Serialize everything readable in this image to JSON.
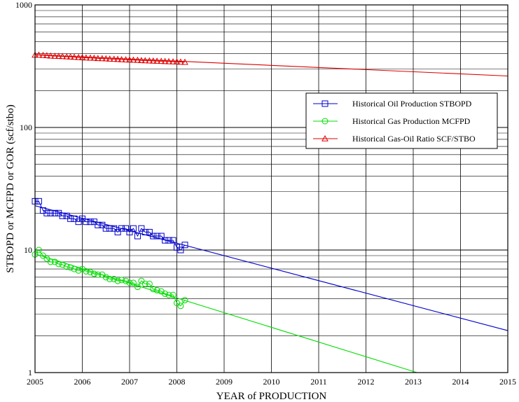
{
  "chart_data": {
    "type": "line",
    "xlabel": "YEAR  of  PRODUCTION",
    "ylabel": "STBOPD  or  MCFPD  or  GOR (scf/stbo)",
    "xlim": [
      2005,
      2015
    ],
    "ylim": [
      1,
      1000
    ],
    "yscale": "log",
    "grid": true,
    "x_ticks": [
      "2005",
      "2006",
      "2007",
      "2008",
      "2009",
      "2010",
      "2011",
      "2012",
      "2013",
      "2014",
      "2015"
    ],
    "y_ticks": [
      "1",
      "10",
      "100",
      "1000"
    ],
    "legend_position": "right",
    "series": [
      {
        "name": "Historical Oil Production STBOPD",
        "color": "#0000cc",
        "marker": "square",
        "x": [
          2005.0,
          2005.08,
          2005.17,
          2005.25,
          2005.33,
          2005.42,
          2005.5,
          2005.58,
          2005.67,
          2005.75,
          2005.83,
          2005.92,
          2006.0,
          2006.08,
          2006.17,
          2006.25,
          2006.33,
          2006.42,
          2006.5,
          2006.58,
          2006.67,
          2006.75,
          2006.83,
          2006.92,
          2007.0,
          2007.08,
          2007.17,
          2007.25,
          2007.33,
          2007.42,
          2007.5,
          2007.58,
          2007.67,
          2007.75,
          2007.83,
          2007.92,
          2008.0,
          2008.08,
          2008.17
        ],
        "values": [
          25,
          25,
          21,
          20,
          20,
          20,
          20,
          19,
          19,
          18,
          18,
          17,
          18,
          17,
          17,
          17,
          16,
          16,
          15,
          15,
          15,
          14,
          15,
          15,
          14,
          15,
          13,
          15,
          14,
          14,
          13,
          13,
          13,
          12,
          12,
          12,
          10.5,
          10,
          11
        ],
        "fit": {
          "x": [
            2005,
            2015
          ],
          "values": [
            23,
            2.2
          ]
        }
      },
      {
        "name": "Historical Gas Production MCFPD",
        "color": "#00dd00",
        "marker": "circle",
        "x": [
          2005.0,
          2005.08,
          2005.17,
          2005.25,
          2005.33,
          2005.42,
          2005.5,
          2005.58,
          2005.67,
          2005.75,
          2005.83,
          2005.92,
          2006.0,
          2006.08,
          2006.17,
          2006.25,
          2006.33,
          2006.42,
          2006.5,
          2006.58,
          2006.67,
          2006.75,
          2006.83,
          2006.92,
          2007.0,
          2007.08,
          2007.17,
          2007.25,
          2007.33,
          2007.42,
          2007.5,
          2007.58,
          2007.67,
          2007.75,
          2007.83,
          2007.92,
          2008.0,
          2008.08,
          2008.17
        ],
        "values": [
          9.2,
          10,
          9,
          8.5,
          8,
          8,
          7.7,
          7.6,
          7.3,
          7.2,
          7,
          6.8,
          7,
          6.7,
          6.6,
          6.4,
          6.3,
          6.3,
          6.0,
          5.8,
          5.8,
          5.6,
          5.7,
          5.6,
          5.4,
          5.4,
          5.0,
          5.6,
          5.3,
          5.3,
          4.8,
          4.7,
          4.6,
          4.4,
          4.3,
          4.3,
          3.7,
          3.5,
          3.9
        ],
        "fit": {
          "x": [
            2005,
            2013.08
          ],
          "values": [
            9.3,
            1.0
          ]
        }
      },
      {
        "name": "Historical Gas-Oil Ratio  SCF/STBO",
        "color": "#dd0000",
        "marker": "triangle",
        "x": [
          2005.0,
          2005.08,
          2005.17,
          2005.25,
          2005.33,
          2005.42,
          2005.5,
          2005.58,
          2005.67,
          2005.75,
          2005.83,
          2005.92,
          2006.0,
          2006.08,
          2006.17,
          2006.25,
          2006.33,
          2006.42,
          2006.5,
          2006.58,
          2006.67,
          2006.75,
          2006.83,
          2006.92,
          2007.0,
          2007.08,
          2007.17,
          2007.25,
          2007.33,
          2007.42,
          2007.5,
          2007.58,
          2007.67,
          2007.75,
          2007.83,
          2007.92,
          2008.0,
          2008.08,
          2008.17
        ],
        "values": [
          390,
          390,
          388,
          386,
          384,
          382,
          381,
          380,
          378,
          377,
          375,
          373,
          372,
          370,
          369,
          368,
          366,
          365,
          364,
          362,
          361,
          360,
          358,
          357,
          356,
          355,
          354,
          352,
          351,
          350,
          349,
          348,
          347,
          346,
          345,
          344,
          343,
          342,
          341
        ],
        "fit": {
          "x": [
            2005,
            2015
          ],
          "values": [
            392,
            263
          ]
        }
      }
    ]
  }
}
